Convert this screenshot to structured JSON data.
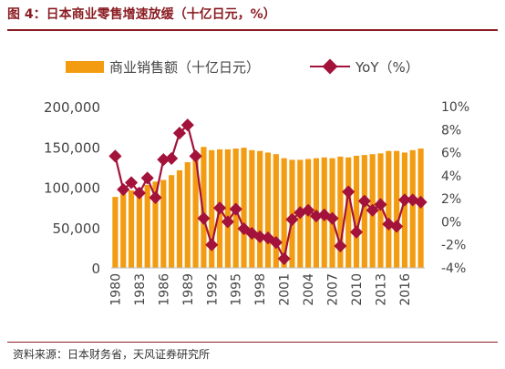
{
  "figure": {
    "title": "图 4：日本商业零售增速放缓（十亿日元，%）",
    "source": "资料来源：日本财务省，天风证券研究所"
  },
  "colors": {
    "bar": "#F39C12",
    "line": "#A3123A",
    "title": "#8B1E24",
    "axis_text": "#444444"
  },
  "chart_data": {
    "type": "bar",
    "title": "",
    "xlabel": "",
    "ylabel": "",
    "categories": [
      1980,
      1981,
      1982,
      1983,
      1984,
      1985,
      1986,
      1987,
      1988,
      1989,
      1990,
      1991,
      1992,
      1993,
      1994,
      1995,
      1996,
      1997,
      1998,
      1999,
      2000,
      2001,
      2002,
      2003,
      2004,
      2005,
      2006,
      2007,
      2008,
      2009,
      2010,
      2011,
      2012,
      2013,
      2014,
      2015,
      2016,
      2017,
      2018
    ],
    "x_tick_labels": [
      "1980",
      "1983",
      "1986",
      "1989",
      "1992",
      "1995",
      "1998",
      "2001",
      "2004",
      "2007",
      "2010",
      "2013",
      "2016"
    ],
    "y_left": {
      "ylim": [
        0,
        200000
      ],
      "ticks": [
        "0",
        "50,000",
        "100,000",
        "150,000",
        "200,000"
      ]
    },
    "y_right": {
      "ylim": [
        -4,
        10
      ],
      "ticks": [
        "-4%",
        "-2%",
        "0%",
        "2%",
        "4%",
        "6%",
        "8%",
        "10%"
      ]
    },
    "legend": [
      "商业销售额（十亿日元）",
      "YoY（%）"
    ],
    "legend_placement": "top-center",
    "grid": false,
    "series": [
      {
        "name": "商业销售额（十亿日元）",
        "type": "bar",
        "axis": "left",
        "values": [
          88000,
          93000,
          96000,
          99000,
          103000,
          107000,
          109000,
          115000,
          121000,
          131000,
          142000,
          150000,
          146000,
          147000,
          147000,
          148000,
          149000,
          146000,
          145000,
          143000,
          141000,
          136000,
          134000,
          134000,
          135000,
          136000,
          137000,
          136000,
          138000,
          137000,
          139000,
          140000,
          141000,
          142000,
          145000,
          145000,
          143000,
          146000,
          148000
        ]
      },
      {
        "name": "YoY（%）",
        "type": "line",
        "axis": "right",
        "values": [
          5.7,
          2.8,
          3.4,
          2.5,
          3.8,
          2.1,
          5.4,
          5.5,
          7.7,
          8.4,
          5.7,
          0.3,
          -2.0,
          1.2,
          0.0,
          1.1,
          -0.6,
          -1.0,
          -1.3,
          -1.4,
          -1.8,
          -3.2,
          0.2,
          0.8,
          1.0,
          0.5,
          0.6,
          0.3,
          -2.1,
          2.6,
          -0.9,
          1.8,
          1.0,
          1.5,
          -0.2,
          -0.4,
          1.9,
          1.9,
          1.7
        ]
      }
    ]
  }
}
